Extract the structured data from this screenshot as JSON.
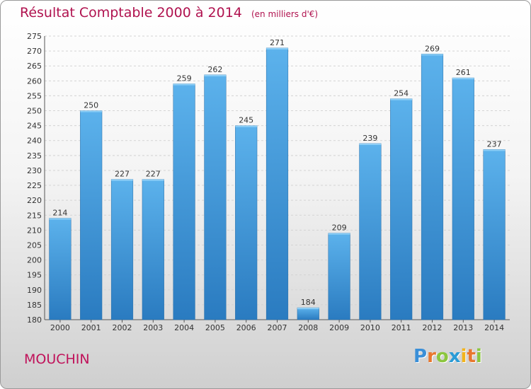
{
  "title": "Résultat Comptable 2000 à 2014",
  "subtitle": "(en milliers d'€)",
  "commune": "MOUCHIN",
  "logo": {
    "letters": [
      "P",
      "r",
      "o",
      "x",
      "i",
      "t",
      "i"
    ],
    "colors": [
      "#3a8fd8",
      "#e8772e",
      "#8cc63f",
      "#2a9bd6",
      "#f2b41d",
      "#e8772e",
      "#8cc63f"
    ]
  },
  "colors": {
    "bar_top": "#5cb2ec",
    "bar_bottom": "#2a7bc0",
    "title": "#b0124f"
  },
  "chart_data": {
    "type": "bar",
    "categories": [
      "2000",
      "2001",
      "2002",
      "2003",
      "2004",
      "2005",
      "2006",
      "2007",
      "2008",
      "2009",
      "2010",
      "2011",
      "2012",
      "2013",
      "2014"
    ],
    "values": [
      214,
      250,
      227,
      227,
      259,
      262,
      245,
      271,
      184,
      209,
      239,
      254,
      269,
      261,
      237
    ],
    "ylim": [
      180,
      275
    ],
    "yticks": [
      180,
      185,
      190,
      195,
      200,
      205,
      210,
      215,
      220,
      225,
      230,
      235,
      240,
      245,
      250,
      255,
      260,
      265,
      270,
      275
    ],
    "grid": true,
    "data_labels": true
  }
}
